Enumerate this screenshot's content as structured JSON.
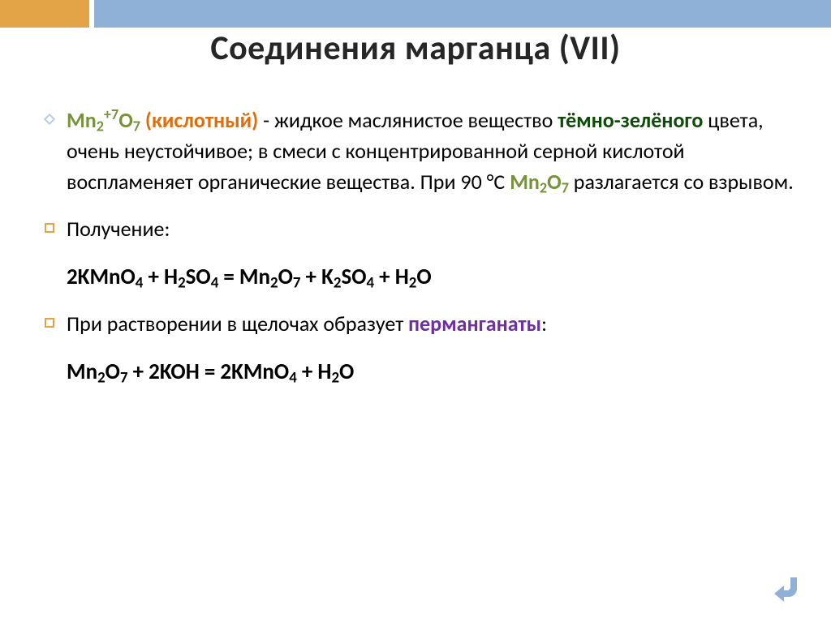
{
  "layout": {
    "band_small_width": 110,
    "band_colors": {
      "small": "#e3a447",
      "rest": "#8fb0d7"
    },
    "title_fontsize": 42,
    "body_fontsize": 26,
    "eqn_fontsize": 27,
    "line_gap": 20,
    "colors": {
      "title": "#262626",
      "body": "#000000",
      "orange": "#e36c09",
      "dgreen": "#0f4a0a",
      "olive": "#76923c",
      "purple": "#7030a0",
      "bullet_diamond_fill": "#ffffff",
      "bullet_diamond_stroke": "#b9cde5",
      "bullet_square_stroke": "#e3a447",
      "nav_arrow": "#8fb0d7"
    }
  },
  "title": "Соединения марганца (VII)",
  "p1": {
    "lead_html": "Mn<sub>2</sub><sup>+7</sup>O<sub>7</sub>",
    "paren": "(кислотный)",
    "after_paren": " - жидкое маслянистое вещество ",
    "emph1": "тёмно-зелёного",
    "mid": " цвета, очень неустойчивое; в смеси с концентрированной серной кислотой воспламеняет органические вещества. При 90 °C ",
    "mn2o7_html": "Mn<sub>2</sub>O<sub>7</sub>",
    "tail": " разлагается со взрывом."
  },
  "p2": "Получение:",
  "eq1_html": "2KMnO<sub>4</sub> + H<sub>2</sub>SO<sub>4</sub> = Mn<sub>2</sub>O<sub>7</sub> + K<sub>2</sub>SO<sub>4</sub> + H<sub>2</sub>O",
  "p3_a": "При растворении в щелочах образует ",
  "p3_b": "перманганаты",
  "p3_c": ":",
  "eq2_html": "Mn<sub>2</sub>O<sub>7</sub> + 2KOH = 2KMnO<sub>4</sub> + H<sub>2</sub>O"
}
